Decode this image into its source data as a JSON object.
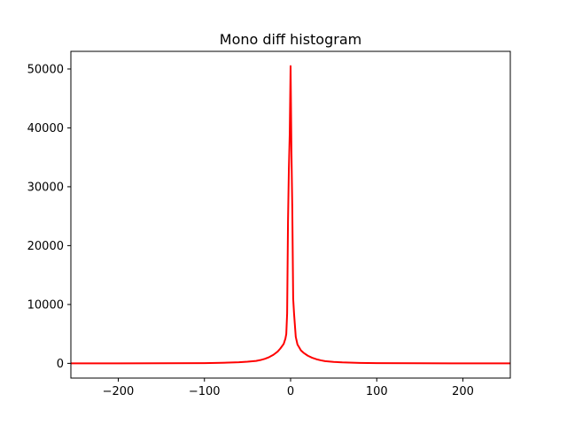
{
  "chart_data": {
    "type": "line",
    "title": "Mono diff histogram",
    "xlabel": "",
    "ylabel": "",
    "xlim": [
      -255,
      255
    ],
    "ylim": [
      -2500,
      53000
    ],
    "grid": false,
    "legend": "none",
    "xticks": [
      -200,
      -100,
      0,
      100,
      200
    ],
    "xtick_labels": [
      "−200",
      "−100",
      "0",
      "100",
      "200"
    ],
    "yticks": [
      0,
      10000,
      20000,
      30000,
      40000,
      50000
    ],
    "ytick_labels": [
      "0",
      "10000",
      "20000",
      "30000",
      "40000",
      "50000"
    ],
    "series": [
      {
        "color": "#ff0000",
        "x": [
          -255,
          -200,
          -150,
          -100,
          -80,
          -60,
          -50,
          -40,
          -35,
          -30,
          -25,
          -20,
          -15,
          -12,
          -10,
          -8,
          -6,
          -5,
          -4,
          -3,
          -2,
          -1,
          0,
          1,
          2,
          3,
          4,
          5,
          6,
          8,
          10,
          12,
          15,
          20,
          25,
          30,
          35,
          40,
          50,
          60,
          80,
          100,
          150,
          200,
          255
        ],
        "y": [
          0,
          0,
          10,
          40,
          90,
          180,
          280,
          420,
          560,
          760,
          1050,
          1450,
          2000,
          2500,
          2900,
          3300,
          4200,
          5000,
          8500,
          24000,
          33000,
          39000,
          50500,
          36000,
          26000,
          11000,
          8500,
          6500,
          4500,
          3200,
          2700,
          2200,
          1800,
          1300,
          950,
          700,
          520,
          380,
          250,
          160,
          80,
          40,
          10,
          0,
          0
        ]
      }
    ]
  }
}
